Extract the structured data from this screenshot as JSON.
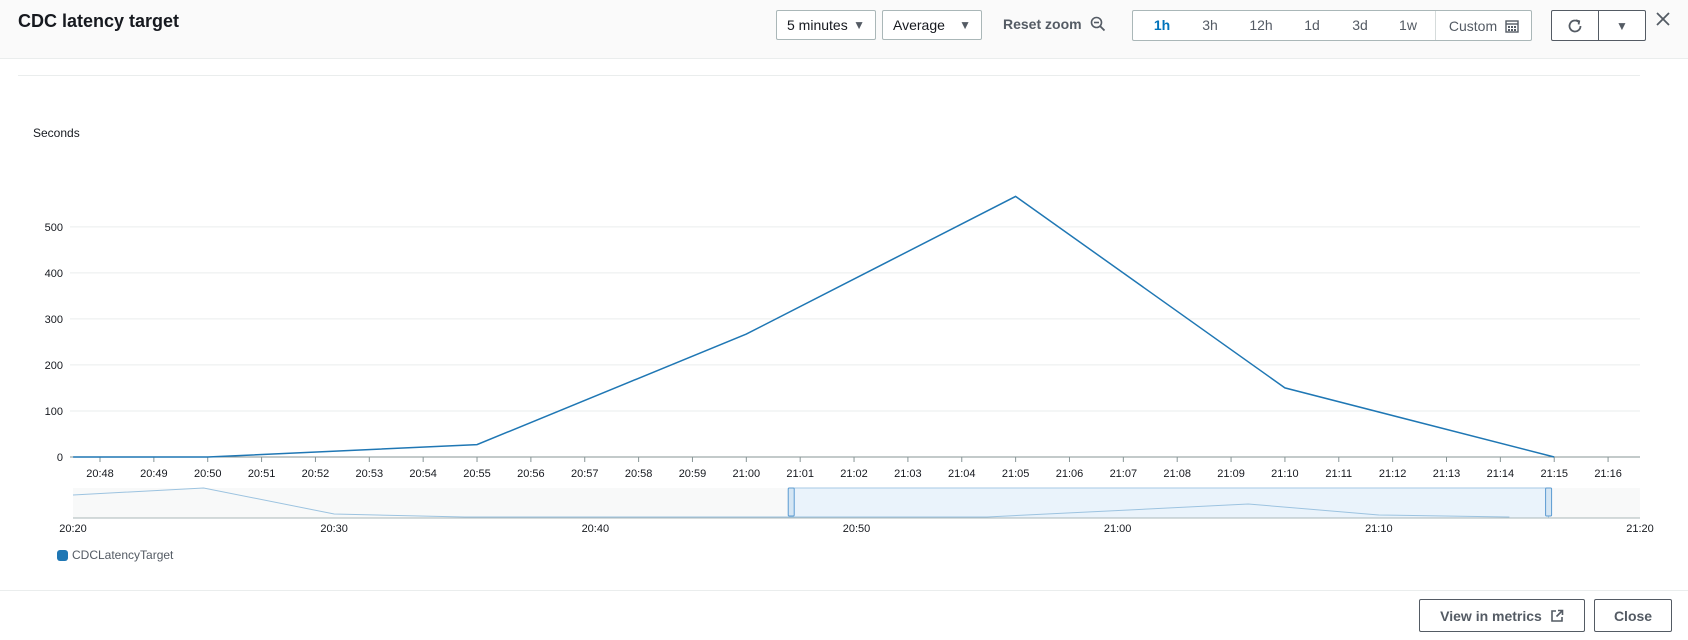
{
  "header": {
    "title": "CDC latency target",
    "period": "5 minutes",
    "statistic": "Average",
    "reset_zoom": "Reset zoom",
    "ranges": [
      "1h",
      "3h",
      "12h",
      "1d",
      "3d",
      "1w"
    ],
    "active_range": "1h",
    "custom": "Custom"
  },
  "colors": {
    "series": "#1f77b4",
    "accent": "#0073bb"
  },
  "chart_data": {
    "type": "line",
    "ylabel": "Seconds",
    "ylim": [
      0,
      580
    ],
    "yticks": [
      0,
      100,
      200,
      300,
      400,
      500
    ],
    "xticks": [
      "20:48",
      "20:49",
      "20:50",
      "20:51",
      "20:52",
      "20:53",
      "20:54",
      "20:55",
      "20:56",
      "20:57",
      "20:58",
      "20:59",
      "21:00",
      "21:01",
      "21:02",
      "21:03",
      "21:04",
      "21:05",
      "21:06",
      "21:07",
      "21:08",
      "21:09",
      "21:10",
      "21:11",
      "21:12",
      "21:13",
      "21:14",
      "21:15",
      "21:16"
    ],
    "series": [
      {
        "name": "CDCLatencyTarget",
        "x": [
          "20:47:30",
          "20:50",
          "20:55",
          "21:00",
          "21:05",
          "21:10",
          "21:15"
        ],
        "y": [
          0,
          0,
          27,
          267,
          566,
          150,
          0
        ]
      }
    ],
    "overview": {
      "xticks": [
        "20:20",
        "20:30",
        "20:40",
        "20:50",
        "21:00",
        "21:10",
        "21:20"
      ],
      "selection": [
        "20:47:30",
        "21:16:30"
      ]
    }
  },
  "legend": {
    "label": "CDCLatencyTarget"
  },
  "footer": {
    "view_in_metrics": "View in metrics",
    "close": "Close"
  }
}
